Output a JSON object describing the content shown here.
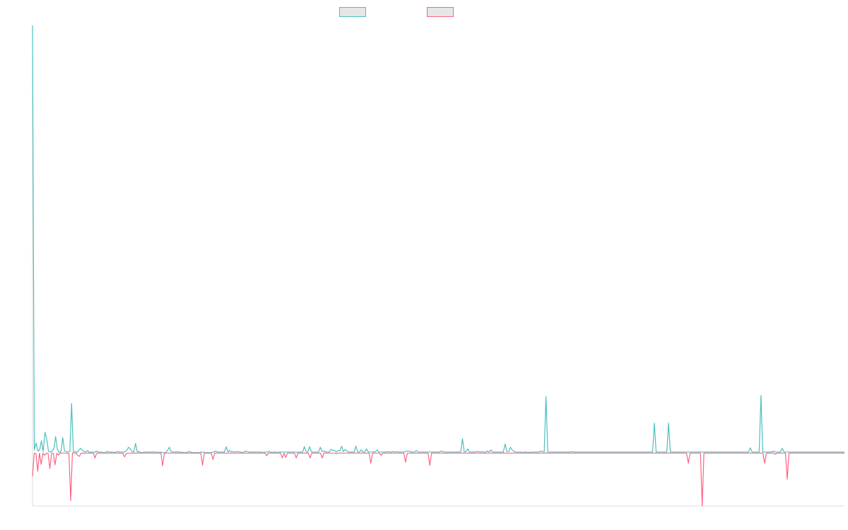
{
  "chart_data": {
    "type": "line",
    "title": "",
    "xlabel": "",
    "ylabel": "",
    "grid": false,
    "legend_placement": "top-center",
    "ylim": [
      -100,
      800
    ],
    "series": [
      {
        "color": "#4bc0c0",
        "values": [
          800,
          5,
          18,
          3,
          5,
          22,
          2,
          38,
          25,
          2,
          1,
          3,
          7,
          30,
          6,
          0,
          2,
          28,
          3,
          2,
          1,
          2,
          92,
          1,
          2,
          0,
          4,
          8,
          5,
          2,
          1,
          4,
          0,
          1,
          1,
          0,
          3,
          1,
          1,
          1,
          0,
          0,
          2,
          1,
          1,
          1,
          0,
          1,
          2,
          1,
          1,
          1,
          1,
          4,
          10,
          7,
          2,
          1,
          17,
          1,
          2,
          0,
          0,
          1,
          1,
          1,
          1,
          1,
          1,
          1,
          1,
          0,
          1,
          0,
          0,
          0,
          4,
          10,
          2,
          1,
          1,
          1,
          2,
          0,
          1,
          0,
          0,
          0,
          2,
          1,
          0,
          0,
          0,
          0,
          0,
          1,
          1,
          0,
          0,
          0,
          0,
          0,
          1,
          3,
          1,
          1,
          1,
          1,
          1,
          11,
          1,
          4,
          1,
          2,
          1,
          2,
          2,
          1,
          0,
          1,
          3,
          2,
          1,
          1,
          1,
          1,
          1,
          1,
          1,
          1,
          0,
          1,
          1,
          2,
          1,
          0,
          1,
          1,
          0,
          1,
          1,
          1,
          1,
          1,
          1,
          1,
          1,
          1,
          1,
          0,
          1,
          1,
          1,
          11,
          1,
          1,
          11,
          1,
          1,
          1,
          1,
          1,
          10,
          2,
          3,
          1,
          1,
          1,
          6,
          4,
          4,
          1,
          4,
          3,
          12,
          2,
          6,
          3,
          1,
          1,
          1,
          1,
          12,
          1,
          1,
          5,
          1,
          1,
          7,
          1,
          1,
          1,
          1,
          2,
          5,
          1,
          1,
          1,
          1,
          1,
          2,
          1,
          1,
          2,
          1,
          2,
          1,
          1,
          1,
          1,
          2,
          3,
          3,
          1,
          1,
          1,
          4,
          1,
          1,
          1,
          1,
          1,
          1,
          1,
          1,
          1,
          1,
          1,
          1,
          1,
          3,
          2,
          1,
          1,
          1,
          1,
          1,
          1,
          1,
          1,
          1,
          1,
          26,
          1,
          2,
          7,
          1,
          1,
          1,
          1,
          2,
          2,
          1,
          2,
          1,
          1,
          3,
          1,
          5,
          1,
          1,
          1,
          1,
          1,
          1,
          1,
          16,
          2,
          2,
          10,
          5,
          2,
          1,
          1,
          1,
          1,
          0,
          1,
          1,
          0,
          1,
          0,
          1,
          1,
          1,
          1,
          3,
          2,
          1,
          105,
          1,
          1,
          1,
          1,
          1,
          1,
          1,
          1,
          1,
          1,
          1,
          1,
          1,
          1,
          2,
          1,
          1,
          1,
          1,
          1,
          1,
          1,
          1,
          1,
          1,
          1,
          1,
          1,
          1,
          1,
          1,
          1,
          1,
          1,
          1,
          1,
          1,
          1,
          1,
          1,
          1,
          1,
          1,
          1,
          1,
          1,
          1,
          1,
          1,
          1,
          1,
          1,
          1,
          1,
          1,
          1,
          1,
          1,
          1,
          1,
          55,
          1,
          1,
          1,
          1,
          1,
          1,
          1,
          55,
          1,
          1,
          1,
          1,
          1,
          1,
          1,
          1,
          1,
          1,
          1,
          1,
          1,
          1,
          1,
          1,
          1,
          1,
          1,
          1,
          1,
          1,
          1,
          1,
          1,
          1,
          1,
          1,
          1,
          1,
          1,
          1,
          1,
          1,
          1,
          1,
          1,
          1,
          1,
          1,
          1,
          1,
          1,
          1,
          1,
          9,
          1,
          1,
          1,
          1,
          1,
          107,
          1,
          1,
          1,
          1,
          1,
          1,
          3,
          1,
          1,
          1,
          1,
          8,
          1,
          1,
          1,
          1,
          1,
          1,
          1,
          1,
          1,
          1,
          1,
          1,
          1,
          1,
          1,
          1,
          1,
          1,
          1,
          1,
          1,
          1,
          1,
          1,
          1,
          1,
          1,
          1,
          1,
          1,
          1,
          1,
          1,
          1,
          1
        ]
      },
      {
        "color": "#ff6384",
        "values": [
          -45,
          -1,
          -2,
          -35,
          -1,
          -22,
          -1,
          -5,
          -1,
          -2,
          -30,
          -1,
          -1,
          -23,
          -1,
          -5,
          -1,
          -1,
          -1,
          -1,
          -1,
          -2,
          -90,
          -1,
          -1,
          -1,
          -5,
          -7,
          -1,
          -1,
          -1,
          -1,
          -1,
          -1,
          -1,
          -1,
          -10,
          -1,
          -1,
          -1,
          -1,
          -1,
          -1,
          -1,
          -1,
          -1,
          -1,
          -1,
          -1,
          -1,
          -1,
          -1,
          -1,
          -8,
          -2,
          -1,
          -1,
          -1,
          -1,
          -1,
          -1,
          -1,
          -1,
          -1,
          -1,
          -1,
          -1,
          -1,
          -1,
          -1,
          -1,
          -1,
          -1,
          -1,
          -1,
          -25,
          -1,
          -1,
          -1,
          -1,
          -1,
          -1,
          -1,
          -1,
          -1,
          -1,
          -1,
          -1,
          -1,
          -1,
          -1,
          -1,
          -1,
          -1,
          -1,
          -1,
          -1,
          -1,
          -24,
          -1,
          -1,
          -1,
          -1,
          -1,
          -13,
          -1,
          -1,
          -1,
          -1,
          -1,
          -1,
          -1,
          -1,
          -1,
          -1,
          -1,
          -1,
          -1,
          -1,
          -1,
          -1,
          -1,
          -1,
          -1,
          -1,
          -1,
          -1,
          -1,
          -1,
          -1,
          -1,
          -1,
          -1,
          -1,
          -1,
          -6,
          -1,
          -1,
          -1,
          -1,
          -1,
          -1,
          -1,
          -1,
          -10,
          -1,
          -9,
          -1,
          -1,
          -1,
          -1,
          -1,
          -10,
          -1,
          -1,
          -1,
          -1,
          -1,
          -1,
          -1,
          -10,
          -1,
          -1,
          -1,
          -1,
          -1,
          -1,
          -10,
          -1,
          -1,
          -1,
          -1,
          -1,
          -1,
          -1,
          -2,
          -1,
          -1,
          -1,
          -1,
          -1,
          -1,
          -1,
          -1,
          -1,
          -1,
          -1,
          -1,
          -1,
          -1,
          -1,
          -1,
          -1,
          -1,
          -1,
          -20,
          -1,
          -1,
          -1,
          -1,
          -1,
          -5,
          -1,
          -1,
          -1,
          -1,
          -1,
          -1,
          -1,
          -1,
          -1,
          -1,
          -1,
          -1,
          -1,
          -18,
          -1,
          -1,
          -1,
          -1,
          -1,
          -1,
          -1,
          -1,
          -1,
          -1,
          -1,
          -1,
          -1,
          -24,
          -1,
          -1,
          -1,
          -1,
          -1,
          -1,
          -1,
          -1,
          -1,
          -1,
          -1,
          -1,
          -1,
          -1,
          -1,
          -1,
          -1,
          -1,
          -1,
          -1,
          -1,
          -1,
          -1,
          -1,
          -1,
          -1,
          -1,
          -1,
          -1,
          -1,
          -1,
          -1,
          -1,
          -1,
          -1,
          -1,
          -1,
          -1,
          -1,
          -1,
          -1,
          -1,
          -1,
          -1,
          -1,
          -1,
          -1,
          -1,
          -1,
          -1,
          -1,
          -1,
          -1,
          -1,
          -1,
          -1,
          -1,
          -1,
          -1,
          -1,
          -1,
          -1,
          -1,
          -1,
          -1,
          -1,
          -1,
          -1,
          -1,
          -1,
          -1,
          -1,
          -1,
          -1,
          -1,
          -1,
          -1,
          -1,
          -1,
          -1,
          -1,
          -1,
          -1,
          -1,
          -1,
          -1,
          -1,
          -1,
          -1,
          -1,
          -1,
          -1,
          -1,
          -1,
          -1,
          -1,
          -1,
          -1,
          -1,
          -1,
          -1,
          -1,
          -1,
          -1,
          -1,
          -1,
          -1,
          -1,
          -1,
          -1,
          -1,
          -1,
          -1,
          -1,
          -1,
          -1,
          -1,
          -1,
          -1,
          -1,
          -1,
          -1,
          -1,
          -1,
          -1,
          -1,
          -1,
          -1,
          -1,
          -1,
          -1,
          -1,
          -1,
          -1,
          -1,
          -1,
          -1,
          -1,
          -1,
          -1,
          -1,
          -1,
          -1,
          -1,
          -1,
          -1,
          -1,
          -1,
          -20,
          -1,
          -1,
          -1,
          -1,
          -1,
          -1,
          -1,
          -100,
          -1,
          -1,
          -1,
          -1,
          -1,
          -1,
          -1,
          -1,
          -1,
          -1,
          -1,
          -1,
          -1,
          -1,
          -1,
          -1,
          -1,
          -1,
          -1,
          -1,
          -1,
          -1,
          -1,
          -1,
          -1,
          -1,
          -1,
          -1,
          -1,
          -1,
          -1,
          -1,
          -1,
          -1,
          -1,
          -20,
          -1,
          -1,
          -1,
          -1,
          -1,
          -3,
          -1,
          -1,
          -1,
          -1,
          -1,
          -1,
          -50,
          -1,
          -1,
          -1,
          -1,
          -1,
          -1,
          -1,
          -1,
          -1,
          -1,
          -1,
          -1,
          -1,
          -1,
          -1,
          -1,
          -1,
          -1,
          -1,
          -1,
          -1,
          -1,
          -1,
          -1,
          -1,
          -1,
          -1,
          -1,
          -1,
          -1,
          -1,
          -1,
          -1
        ]
      }
    ]
  }
}
